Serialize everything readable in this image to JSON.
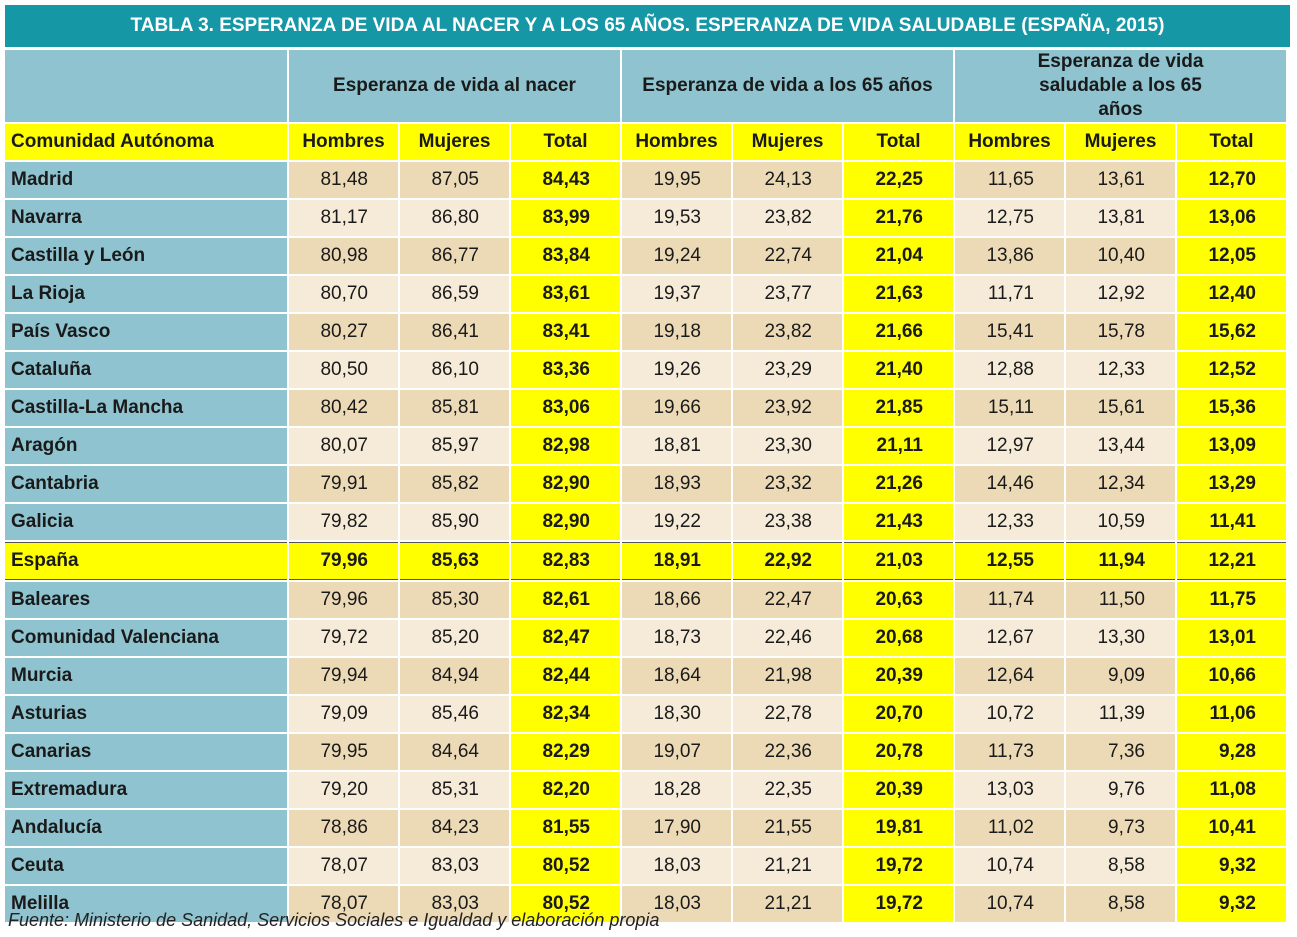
{
  "title": "TABLA 3. ESPERANZA DE VIDA AL NACER Y A LOS 65 AÑOS. ESPERANZA DE VIDA SALUDABLE (ESPAÑA, 2015)",
  "table": {
    "groups": [
      "Esperanza de vida al nacer",
      "Esperanza de vida a los 65 años",
      "Esperanza de vida saludable a los 65 años"
    ],
    "columns": [
      "Comunidad Autónoma",
      "Hombres",
      "Mujeres",
      "Total",
      "Hombres",
      "Mujeres",
      "Total",
      "Hombres",
      "Mujeres",
      "Total"
    ],
    "rows": [
      [
        "Madrid",
        "81,48",
        "87,05",
        "84,43",
        "19,95",
        "24,13",
        "22,25",
        "11,65",
        "13,61",
        "12,70"
      ],
      [
        "Navarra",
        "81,17",
        "86,80",
        "83,99",
        "19,53",
        "23,82",
        "21,76",
        "12,75",
        "13,81",
        "13,06"
      ],
      [
        "Castilla y León",
        "80,98",
        "86,77",
        "83,84",
        "19,24",
        "22,74",
        "21,04",
        "13,86",
        "10,40",
        "12,05"
      ],
      [
        "La Rioja",
        "80,70",
        "86,59",
        "83,61",
        "19,37",
        "23,77",
        "21,63",
        "11,71",
        "12,92",
        "12,40"
      ],
      [
        "País Vasco",
        "80,27",
        "86,41",
        "83,41",
        "19,18",
        "23,82",
        "21,66",
        "15,41",
        "15,78",
        "15,62"
      ],
      [
        "Cataluña",
        "80,50",
        "86,10",
        "83,36",
        "19,26",
        "23,29",
        "21,40",
        "12,88",
        "12,33",
        "12,52"
      ],
      [
        "Castilla-La Mancha",
        "80,42",
        "85,81",
        "83,06",
        "19,66",
        "23,92",
        "21,85",
        "15,11",
        "15,61",
        "15,36"
      ],
      [
        "Aragón",
        "80,07",
        "85,97",
        "82,98",
        "18,81",
        "23,30",
        "21,11",
        "12,97",
        "13,44",
        "13,09"
      ],
      [
        "Cantabria",
        "79,91",
        "85,82",
        "82,90",
        "18,93",
        "23,32",
        "21,26",
        "14,46",
        "12,34",
        "13,29"
      ],
      [
        "Galicia",
        "79,82",
        "85,90",
        "82,90",
        "19,22",
        "23,38",
        "21,43",
        "12,33",
        "10,59",
        "11,41"
      ],
      [
        "España",
        "79,96",
        "85,63",
        "82,83",
        "18,91",
        "22,92",
        "21,03",
        "12,55",
        "11,94",
        "12,21"
      ],
      [
        "Baleares",
        "79,96",
        "85,30",
        "82,61",
        "18,66",
        "22,47",
        "20,63",
        "11,74",
        "11,50",
        "11,75"
      ],
      [
        "Comunidad Valenciana",
        "79,72",
        "85,20",
        "82,47",
        "18,73",
        "22,46",
        "20,68",
        "12,67",
        "13,30",
        "13,01"
      ],
      [
        "Murcia",
        "79,94",
        "84,94",
        "82,44",
        "18,64",
        "21,98",
        "20,39",
        "12,64",
        "9,09",
        "10,66"
      ],
      [
        "Asturias",
        "79,09",
        "85,46",
        "82,34",
        "18,30",
        "22,78",
        "20,70",
        "10,72",
        "11,39",
        "11,06"
      ],
      [
        "Canarias",
        "79,95",
        "84,64",
        "82,29",
        "19,07",
        "22,36",
        "20,78",
        "11,73",
        "7,36",
        "9,28"
      ],
      [
        "Extremadura",
        "79,20",
        "85,31",
        "82,20",
        "18,28",
        "22,35",
        "20,39",
        "13,03",
        "9,76",
        "11,08"
      ],
      [
        "Andalucía",
        "78,86",
        "84,23",
        "81,55",
        "17,90",
        "21,55",
        "19,81",
        "11,02",
        "9,73",
        "10,41"
      ],
      [
        "Ceuta",
        "78,07",
        "83,03",
        "80,52",
        "18,03",
        "21,21",
        "19,72",
        "10,74",
        "8,58",
        "9,32"
      ],
      [
        "Melilla",
        "78,07",
        "83,03",
        "80,52",
        "18,03",
        "21,21",
        "19,72",
        "10,74",
        "8,58",
        "9,32"
      ]
    ]
  },
  "source": "Fuente: Ministerio de Sanidad, Servicios Sociales e Igualdad y elaboración propia"
}
